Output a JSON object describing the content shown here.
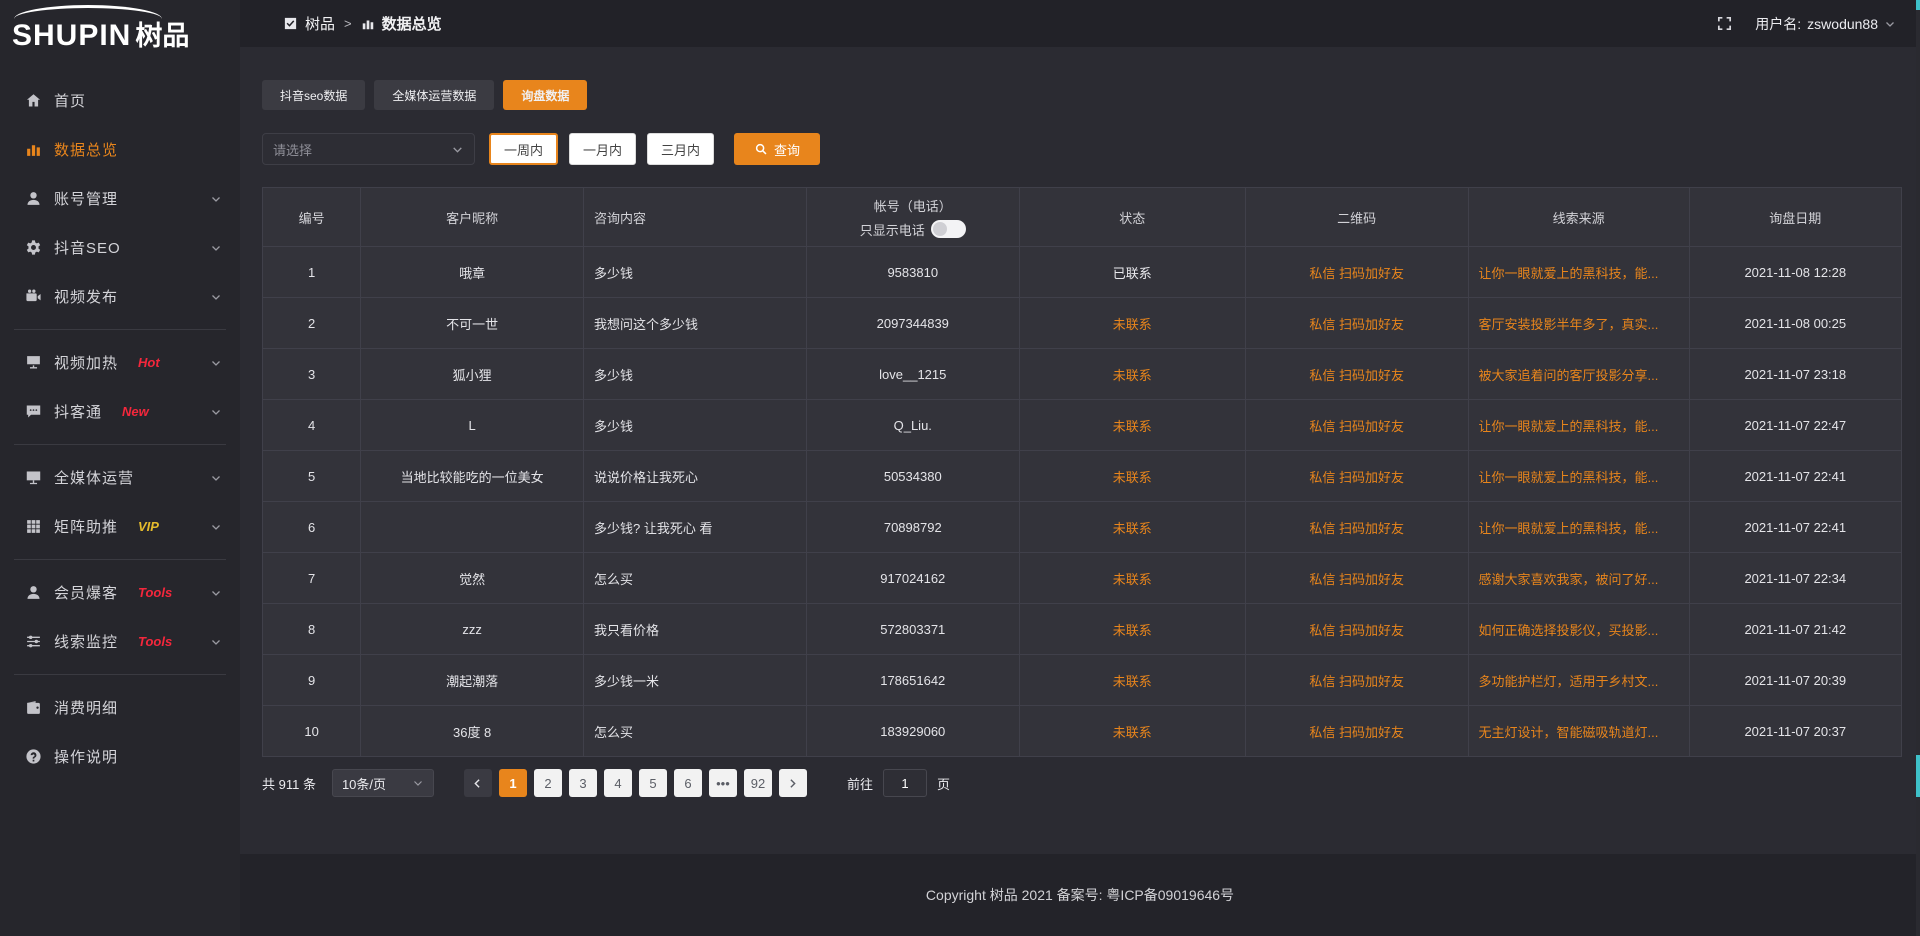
{
  "brand": {
    "logo_en": "SHUPIN",
    "logo_cn": "树品"
  },
  "header": {
    "breadcrumb_root": "树品",
    "breadcrumb_sep": ">",
    "breadcrumb_current": "数据总览",
    "username_label": "用户名:",
    "username": "zswodun88"
  },
  "sidebar": {
    "items": [
      {
        "label": "首页",
        "icon": "home-icon"
      },
      {
        "label": "数据总览",
        "icon": "bar-chart-icon",
        "active": true
      },
      {
        "label": "账号管理",
        "icon": "user-icon",
        "chevron": true
      },
      {
        "label": "抖音SEO",
        "icon": "gear-icon",
        "chevron": true
      },
      {
        "label": "视频发布",
        "icon": "video-publish-icon",
        "chevron": true,
        "divider_after": true
      },
      {
        "label": "视频加热",
        "icon": "heat-monitor-icon",
        "badge": "Hot",
        "badge_style": "red",
        "chevron": true
      },
      {
        "label": "抖客通",
        "icon": "chat-icon",
        "badge": "New",
        "badge_style": "red",
        "chevron": true,
        "divider_after": true
      },
      {
        "label": "全媒体运营",
        "icon": "monitor-icon",
        "chevron": true
      },
      {
        "label": "矩阵助推",
        "icon": "grid-icon",
        "badge": "VIP",
        "badge_style": "yellow",
        "chevron": true,
        "divider_after": true
      },
      {
        "label": "会员爆客",
        "icon": "member-icon",
        "badge": "Tools",
        "badge_style": "red",
        "chevron": true
      },
      {
        "label": "线索监控",
        "icon": "sliders-icon",
        "badge": "Tools",
        "badge_style": "red",
        "chevron": true,
        "divider_after": true
      },
      {
        "label": "消费明细",
        "icon": "wallet-icon"
      },
      {
        "label": "操作说明",
        "icon": "question-icon"
      }
    ]
  },
  "tabs": [
    {
      "label": "抖音seo数据"
    },
    {
      "label": "全媒体运营数据"
    },
    {
      "label": "询盘数据",
      "active": true
    }
  ],
  "filters": {
    "select_placeholder": "请选择",
    "ranges": [
      {
        "label": "一周内",
        "active": true
      },
      {
        "label": "一月内"
      },
      {
        "label": "三月内"
      }
    ],
    "search_label": "查询"
  },
  "table": {
    "headers": [
      "编号",
      "客户昵称",
      "咨询内容",
      "帐号（电话）",
      "状态",
      "二维码",
      "线索来源",
      "询盘日期"
    ],
    "phone_toggle_label": "只显示电话",
    "rows": [
      {
        "no": "1",
        "nickname": "哦章",
        "content": "多少钱",
        "account": "9583810",
        "status": "已联系",
        "contacted": true,
        "qrcode": "私信 扫码加好友",
        "source": "让你一眼就爱上的黑科技，能...",
        "date": "2021-11-08 12:28"
      },
      {
        "no": "2",
        "nickname": "不可一世",
        "content": "我想问这个多少钱",
        "account": "2097344839",
        "status": "未联系",
        "qrcode": "私信 扫码加好友",
        "source": "客厅安装投影半年多了，真实...",
        "date": "2021-11-08 00:25"
      },
      {
        "no": "3",
        "nickname": "狐小狸",
        "content": "多少钱",
        "account": "love__1215",
        "status": "未联系",
        "qrcode": "私信 扫码加好友",
        "source": "被大家追着问的客厅投影分享...",
        "date": "2021-11-07 23:18"
      },
      {
        "no": "4",
        "nickname": "L",
        "content": "多少钱",
        "account": "Q_Liu.",
        "status": "未联系",
        "qrcode": "私信 扫码加好友",
        "source": "让你一眼就爱上的黑科技，能...",
        "date": "2021-11-07 22:47"
      },
      {
        "no": "5",
        "nickname": "当地比较能吃的一位美女",
        "content": "说说价格让我死心",
        "account": "50534380",
        "status": "未联系",
        "qrcode": "私信 扫码加好友",
        "source": "让你一眼就爱上的黑科技，能...",
        "date": "2021-11-07 22:41"
      },
      {
        "no": "6",
        "nickname": "",
        "content": "多少钱? 让我死心 看",
        "account": "70898792",
        "status": "未联系",
        "qrcode": "私信 扫码加好友",
        "source": "让你一眼就爱上的黑科技，能...",
        "date": "2021-11-07 22:41"
      },
      {
        "no": "7",
        "nickname": "觉然",
        "content": "怎么买",
        "account": "917024162",
        "status": "未联系",
        "qrcode": "私信 扫码加好友",
        "source": "感谢大家喜欢我家，被问了好...",
        "date": "2021-11-07 22:34"
      },
      {
        "no": "8",
        "nickname": "zzz",
        "content": "我只看价格",
        "account": "572803371",
        "status": "未联系",
        "qrcode": "私信 扫码加好友",
        "source": "如何正确选择投影仪，买投影...",
        "date": "2021-11-07 21:42"
      },
      {
        "no": "9",
        "nickname": "潮起潮落",
        "content": "多少钱一米",
        "account": "178651642",
        "status": "未联系",
        "qrcode": "私信 扫码加好友",
        "source": "多功能护栏灯，适用于乡村文...",
        "date": "2021-11-07 20:39"
      },
      {
        "no": "10",
        "nickname": "36度 8",
        "content": "怎么买",
        "account": "183929060",
        "status": "未联系",
        "qrcode": "私信 扫码加好友",
        "source": "无主灯设计，智能磁吸轨道灯...",
        "date": "2021-11-07 20:37"
      }
    ]
  },
  "pagination": {
    "total_label": "共 911 条",
    "page_size": "10条/页",
    "pages": [
      {
        "label": "1",
        "active": true
      },
      {
        "label": "2"
      },
      {
        "label": "3"
      },
      {
        "label": "4"
      },
      {
        "label": "5"
      },
      {
        "label": "6"
      },
      {
        "label": "•••"
      },
      {
        "label": "92"
      }
    ],
    "goto_label": "前往",
    "goto_value": "1",
    "goto_suffix": "页"
  },
  "footer": {
    "copyright": "Copyright 树品 2021 备案号: 粤ICP备09019646号"
  },
  "colors": {
    "accent": "#e8851c",
    "badge_red": "#f4273c",
    "badge_yellow": "#e5bb2c",
    "link_orange": "#e8851c",
    "scroll_thumb": "#3ec1c9"
  }
}
